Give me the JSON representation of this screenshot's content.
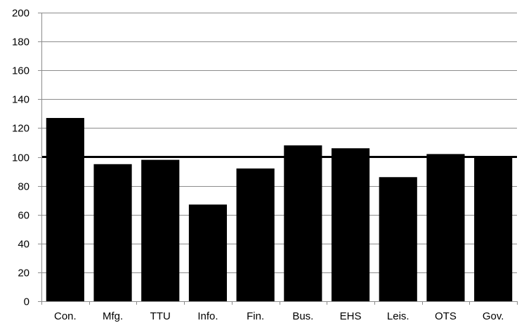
{
  "chart_data": {
    "type": "bar",
    "title": "",
    "xlabel": "",
    "ylabel": "",
    "categories": [
      "Con.",
      "Mfg.",
      "TTU",
      "Info.",
      "Fin.",
      "Bus.",
      "EHS",
      "Leis.",
      "OTS",
      "Gov."
    ],
    "values": [
      127,
      95,
      98,
      67,
      92,
      108,
      106,
      86,
      102,
      100
    ],
    "ylim": [
      0,
      200
    ],
    "yticks": [
      0,
      20,
      40,
      60,
      80,
      100,
      120,
      140,
      160,
      180,
      200
    ],
    "reference_line": 100,
    "grid": true,
    "legend": "none",
    "colors": {
      "bar": "#000000",
      "grid": "#8c8c8c",
      "axis": "#8c8c8c",
      "reference_line": "#000000"
    }
  }
}
